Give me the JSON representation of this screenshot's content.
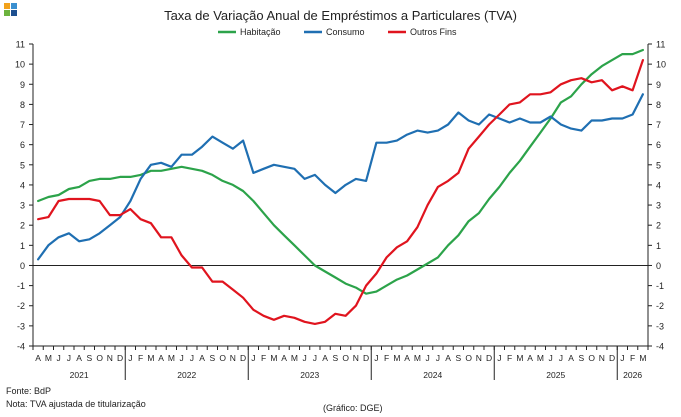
{
  "chart_data": {
    "type": "line",
    "title": "Taxa de Variação Anual de Empréstimos a Particulares (TVA)",
    "xlabel": "",
    "ylabel": "",
    "ylim": [
      -4,
      11
    ],
    "yticks": [
      -4,
      -3,
      -2,
      -1,
      0,
      1,
      2,
      3,
      4,
      5,
      6,
      7,
      8,
      9,
      10,
      11
    ],
    "grid": false,
    "legend_position": "top-center",
    "months": [
      "A",
      "M",
      "J",
      "J",
      "A",
      "S",
      "O",
      "N",
      "D",
      "J",
      "F",
      "M",
      "A",
      "M",
      "J",
      "J",
      "A",
      "S",
      "O",
      "N",
      "D",
      "J",
      "F",
      "M",
      "A",
      "M",
      "J",
      "J",
      "A",
      "S",
      "O",
      "N",
      "D",
      "J",
      "F",
      "M",
      "A",
      "M",
      "J",
      "J",
      "A",
      "S",
      "O",
      "N",
      "D",
      "J",
      "F",
      "M",
      "A",
      "M",
      "J",
      "J",
      "A",
      "S",
      "O",
      "N",
      "D",
      "J",
      "F",
      "M"
    ],
    "years": [
      {
        "label": "2021",
        "start": 0,
        "end": 8
      },
      {
        "label": "2022",
        "start": 9,
        "end": 20
      },
      {
        "label": "2023",
        "start": 21,
        "end": 32
      },
      {
        "label": "2024",
        "start": 33,
        "end": 44
      },
      {
        "label": "2025",
        "start": 45,
        "end": 56
      },
      {
        "label": "2026",
        "start": 57,
        "end": 59
      }
    ],
    "series": [
      {
        "name": "Habitação",
        "color": "#2ca34a",
        "values": [
          3.2,
          3.4,
          3.5,
          3.8,
          3.9,
          4.2,
          4.3,
          4.3,
          4.4,
          4.4,
          4.5,
          4.7,
          4.7,
          4.8,
          4.9,
          4.8,
          4.7,
          4.5,
          4.2,
          4.0,
          3.7,
          3.2,
          2.6,
          2.0,
          1.5,
          1.0,
          0.5,
          0.0,
          -0.3,
          -0.6,
          -0.9,
          -1.1,
          -1.4,
          -1.3,
          -1.0,
          -0.7,
          -0.5,
          -0.2,
          0.1,
          0.4,
          1.0,
          1.5,
          2.2,
          2.6,
          3.3,
          3.9,
          4.6,
          5.2,
          5.9,
          6.6,
          7.3,
          8.1,
          8.4,
          9.0,
          9.5,
          9.9,
          10.2,
          10.5,
          10.5,
          10.7
        ]
      },
      {
        "name": "Consumo",
        "color": "#1f6fb2",
        "values": [
          0.3,
          1.0,
          1.4,
          1.6,
          1.2,
          1.3,
          1.6,
          2.0,
          2.4,
          3.2,
          4.3,
          5.0,
          5.1,
          4.9,
          5.5,
          5.5,
          5.9,
          6.4,
          6.1,
          5.8,
          6.2,
          4.6,
          4.8,
          5.0,
          4.9,
          4.8,
          4.3,
          4.5,
          4.0,
          3.6,
          4.0,
          4.3,
          4.2,
          6.1,
          6.1,
          6.2,
          6.5,
          6.7,
          6.6,
          6.7,
          7.0,
          7.6,
          7.2,
          7.0,
          7.5,
          7.3,
          7.1,
          7.3,
          7.1,
          7.1,
          7.4,
          7.0,
          6.8,
          6.7,
          7.2,
          7.2,
          7.3,
          7.3,
          7.5,
          8.5
        ]
      },
      {
        "name": "Outros Fins",
        "color": "#e0141e",
        "values": [
          2.3,
          2.4,
          3.2,
          3.3,
          3.3,
          3.3,
          3.2,
          2.5,
          2.5,
          2.8,
          2.3,
          2.1,
          1.4,
          1.4,
          0.5,
          -0.1,
          -0.1,
          -0.8,
          -0.8,
          -1.2,
          -1.6,
          -2.2,
          -2.5,
          -2.7,
          -2.5,
          -2.6,
          -2.8,
          -2.9,
          -2.8,
          -2.4,
          -2.5,
          -2.0,
          -1.0,
          -0.4,
          0.4,
          0.9,
          1.2,
          1.9,
          3.0,
          3.9,
          4.2,
          4.6,
          5.8,
          6.4,
          7.0,
          7.5,
          8.0,
          8.1,
          8.5,
          8.5,
          8.6,
          9.0,
          9.2,
          9.3,
          9.1,
          9.2,
          8.7,
          8.9,
          8.7,
          10.2
        ]
      }
    ]
  },
  "footer": {
    "source": "Fonte: BdP",
    "note": "Nota: TVA ajustada de titularização",
    "credit": "(Gráfico: DGE)"
  },
  "colors": {
    "axis": "#222222",
    "logo": [
      "#f2a21b",
      "#3a8fd0",
      "#6cb33e",
      "#1d4f8f"
    ]
  }
}
